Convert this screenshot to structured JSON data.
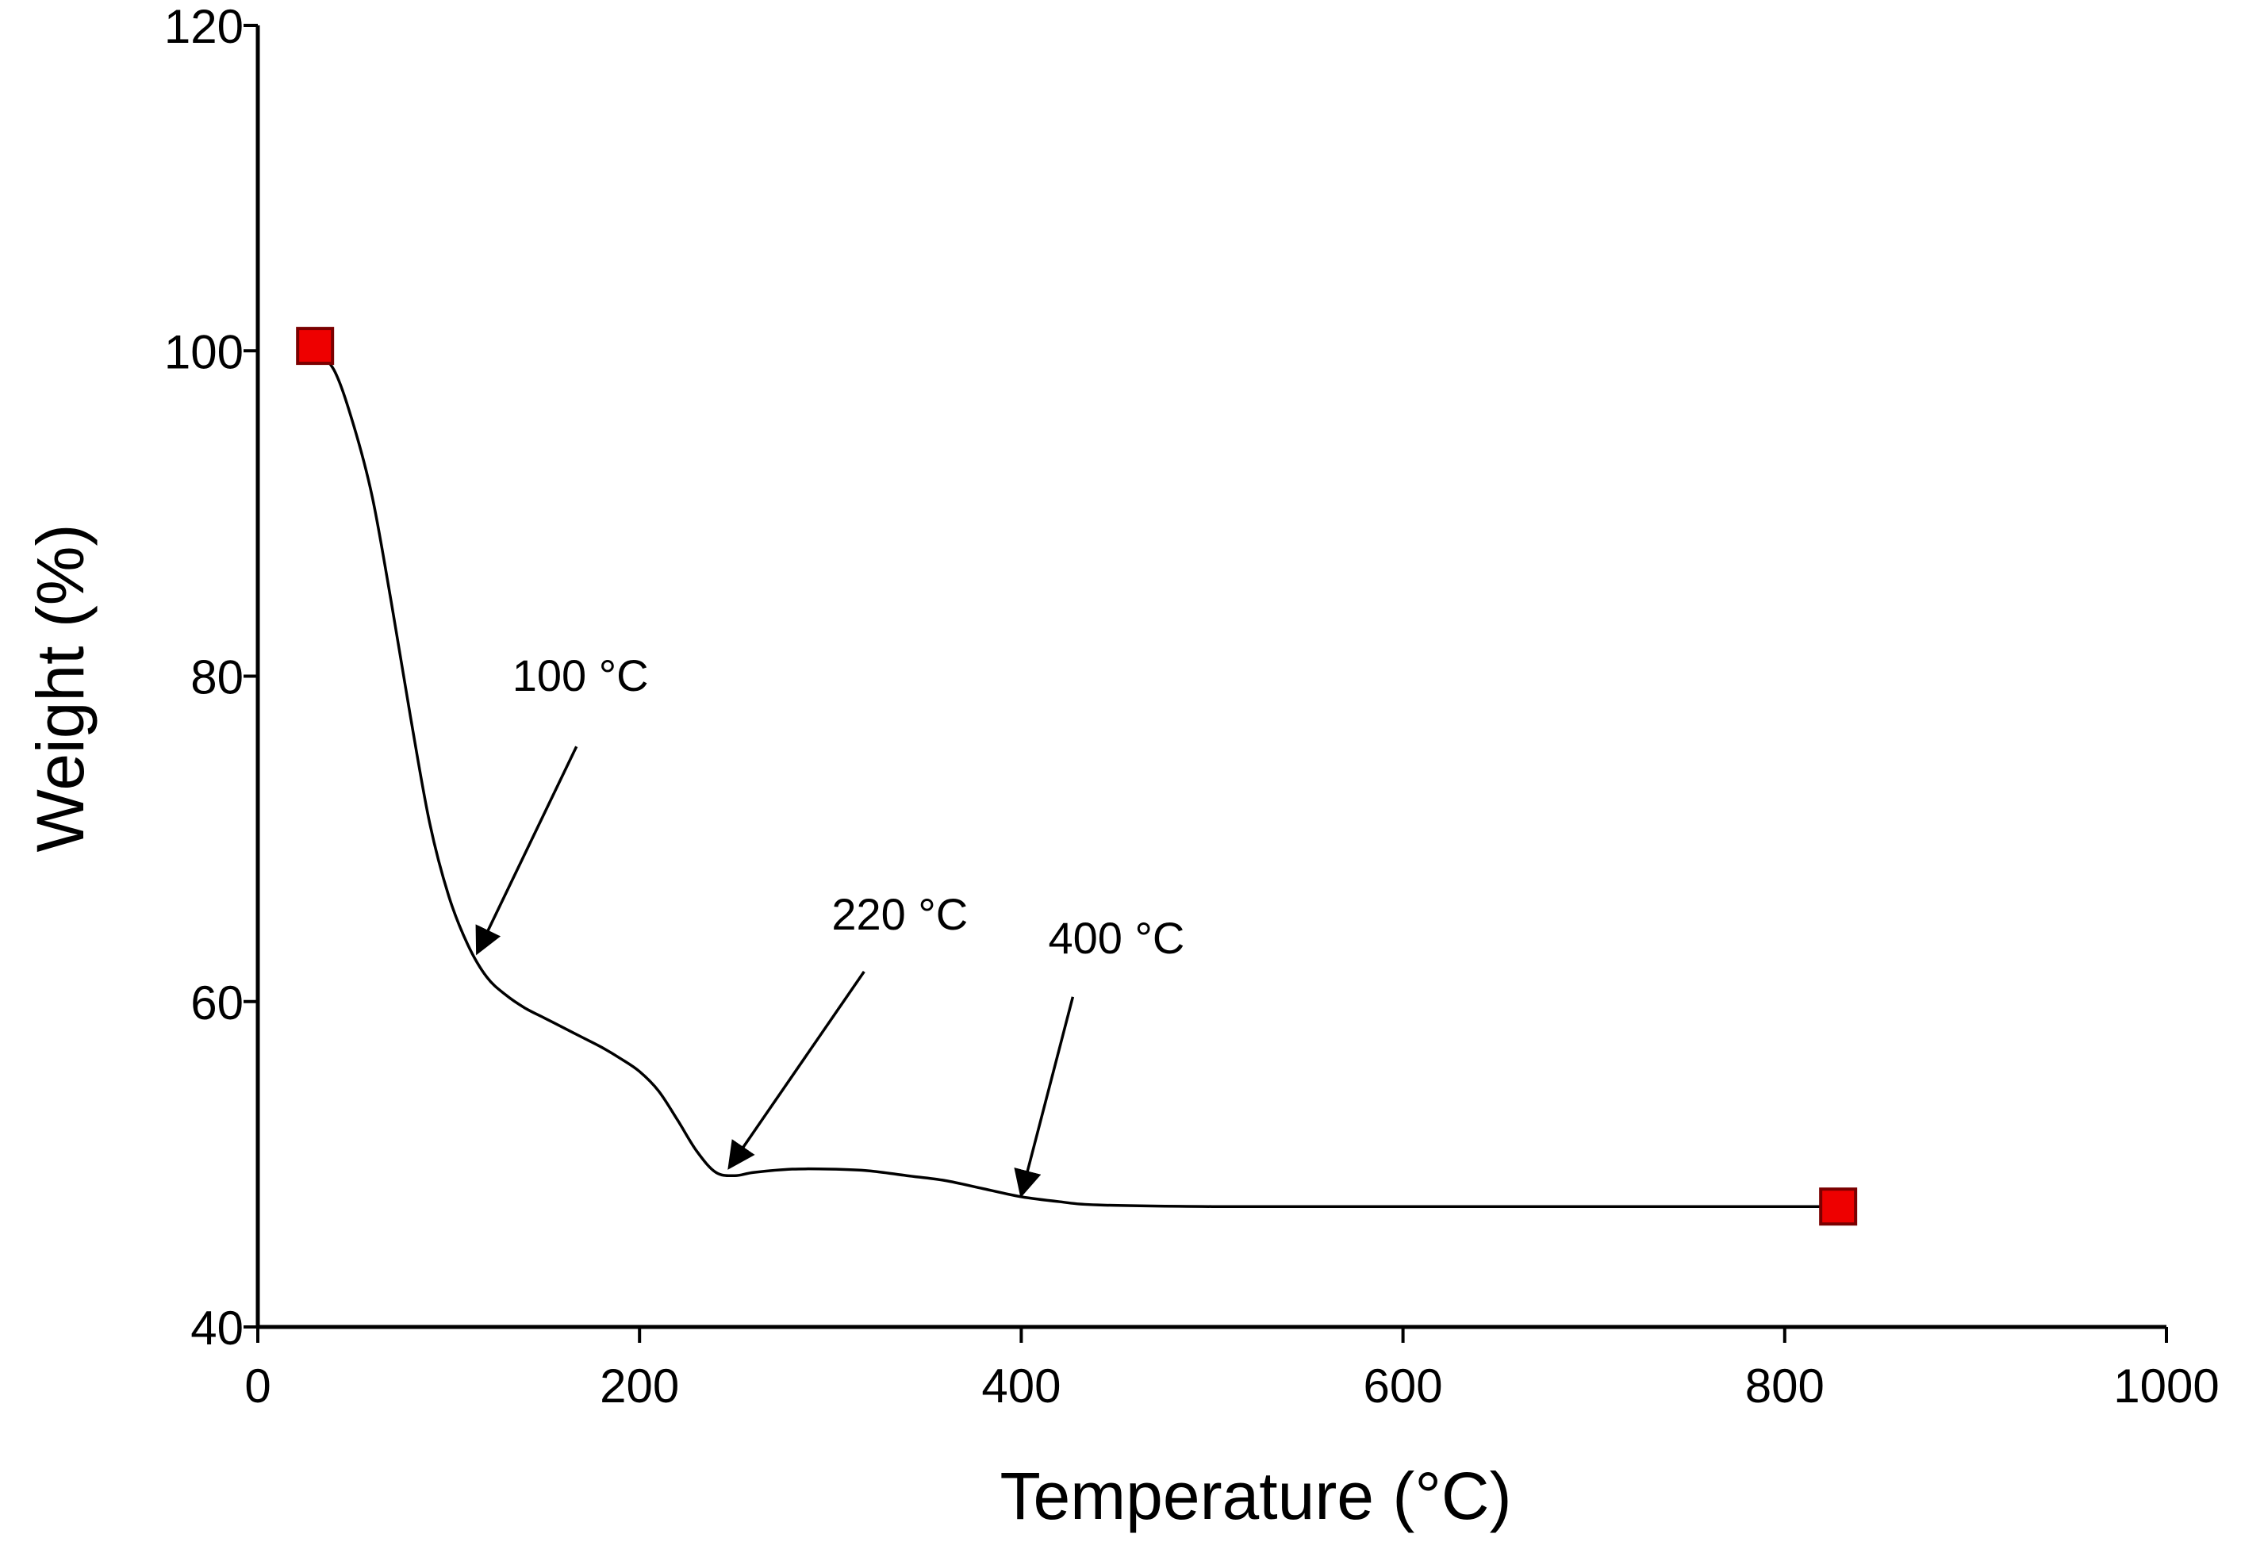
{
  "chart_data": {
    "type": "line",
    "title": "",
    "xlabel": "Temperature (°C)",
    "ylabel": "Weight (%)",
    "xlim": [
      0,
      1000
    ],
    "ylim": [
      40,
      120
    ],
    "x_ticks": [
      0,
      200,
      400,
      600,
      800,
      1000
    ],
    "y_ticks": [
      40,
      60,
      80,
      100,
      120
    ],
    "grid": false,
    "colors": {
      "line": "#000000",
      "marker_fill": "#ee0000",
      "marker_stroke": "#7a0000",
      "axis": "#000000"
    },
    "series": [
      {
        "x": [
          30,
          40,
          50,
          60,
          70,
          80,
          90,
          100,
          110,
          120,
          130,
          140,
          150,
          160,
          170,
          180,
          190,
          200,
          210,
          220,
          230,
          240,
          250,
          260,
          280,
          300,
          320,
          340,
          360,
          380,
          400,
          420,
          440,
          500,
          600,
          700,
          800,
          828
        ],
        "y": [
          100,
          98.8,
          95.5,
          91,
          84.5,
          77.5,
          71,
          66.5,
          63.5,
          61.5,
          60.4,
          59.6,
          59,
          58.4,
          57.8,
          57.2,
          56.5,
          55.7,
          54.5,
          52.7,
          50.8,
          49.5,
          49.3,
          49.5,
          49.7,
          49.7,
          49.6,
          49.3,
          49,
          48.5,
          48,
          47.7,
          47.5,
          47.4,
          47.4,
          47.4,
          47.4,
          47.4
        ]
      }
    ],
    "markers": [
      {
        "x": 30,
        "y": 100.3,
        "shape": "square"
      },
      {
        "x": 828,
        "y": 47.4,
        "shape": "square"
      }
    ],
    "annotations": [
      {
        "text": "100 °C",
        "x": 115,
        "y": 63
      },
      {
        "text": "220 °C",
        "x": 247,
        "y": 49.8
      },
      {
        "text": "400 °C",
        "x": 400,
        "y": 48.1
      }
    ]
  }
}
